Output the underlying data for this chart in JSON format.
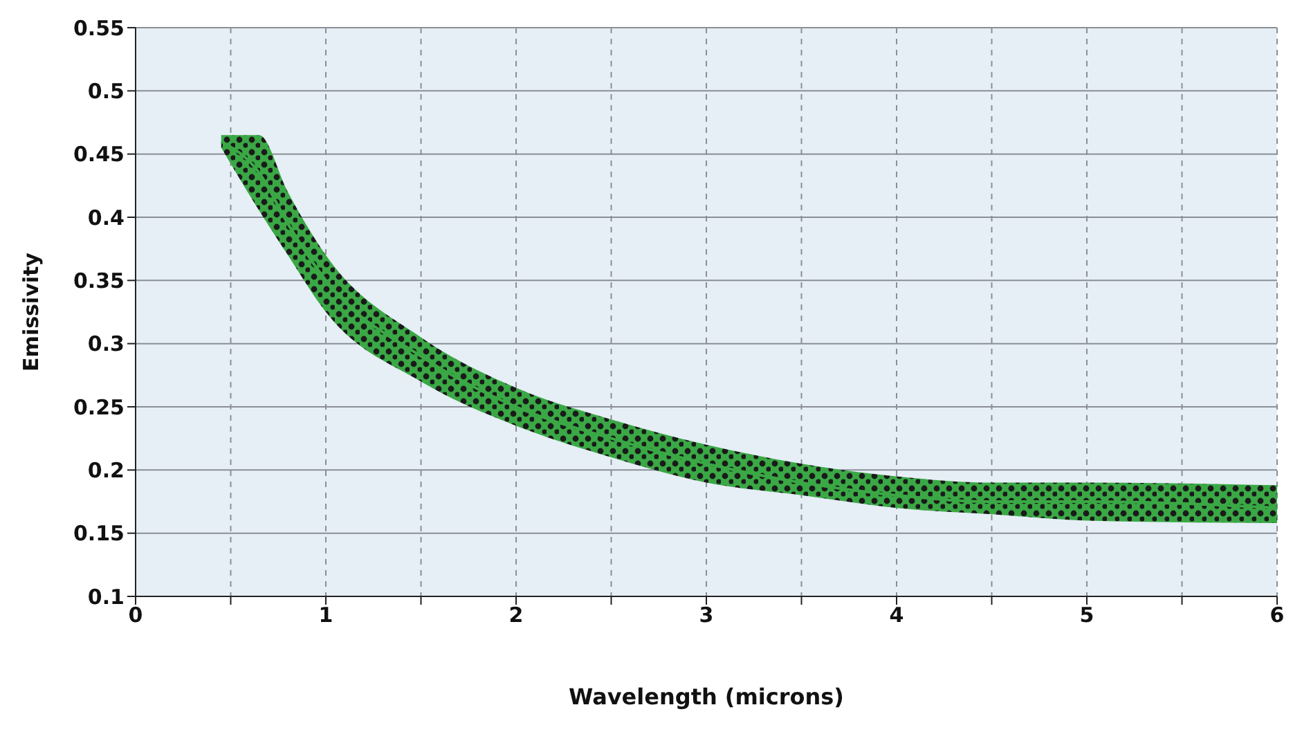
{
  "chart_data": {
    "type": "line",
    "xlabel": "Wavelength (microns)",
    "ylabel": "Emissivity",
    "series": [
      {
        "color": "#3aa845",
        "x": [
          0.45,
          0.65,
          0.8,
          1,
          1.5,
          2,
          2.5,
          3,
          3.5,
          4,
          4.5,
          5,
          6
        ],
        "values": [
          0.46,
          0.435,
          0.395,
          0.35,
          0.29,
          0.25,
          0.225,
          0.205,
          0.19,
          0.18,
          0.175,
          0.175,
          0.17
        ],
        "lower": [
          0.455,
          0.405,
          0.37,
          0.325,
          0.27,
          0.235,
          0.21,
          0.19,
          0.18,
          0.17,
          0.165,
          0.16,
          0.158
        ],
        "upper": [
          0.465,
          0.465,
          0.42,
          0.37,
          0.305,
          0.265,
          0.24,
          0.22,
          0.205,
          0.195,
          0.19,
          0.19,
          0.188
        ]
      }
    ],
    "xlim": [
      0,
      6
    ],
    "xticks": [
      0,
      {
        "value": 0.5,
        "label": null
      },
      1,
      {
        "value": 1.5,
        "label": null
      },
      2,
      {
        "value": 2.5,
        "label": null
      },
      3,
      {
        "value": 3.5,
        "label": null
      },
      4,
      {
        "value": 4.5,
        "label": null
      },
      5,
      {
        "value": 5.5,
        "label": null
      },
      6
    ],
    "ylim": [
      0.1,
      0.55
    ],
    "yticks": [
      0.1,
      0.15,
      0.2,
      0.25,
      0.3,
      0.35,
      0.4,
      0.45,
      0.5,
      0.55
    ],
    "grid": true,
    "legend": false,
    "marker": "none",
    "line_style": "solid"
  }
}
